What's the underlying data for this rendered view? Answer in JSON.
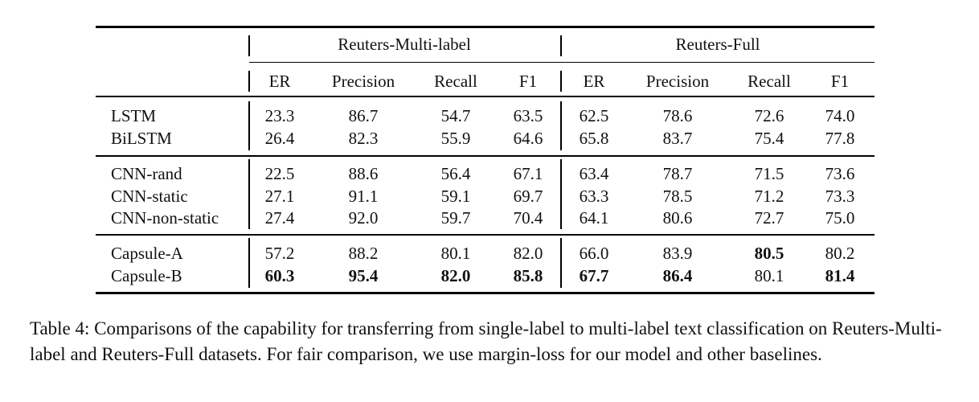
{
  "table": {
    "groups": [
      "Reuters-Multi-label",
      "Reuters-Full"
    ],
    "columns": [
      "ER",
      "Precision",
      "Recall",
      "F1",
      "ER",
      "Precision",
      "Recall",
      "F1"
    ],
    "sections": [
      [
        {
          "model": "LSTM",
          "values": [
            "23.3",
            "86.7",
            "54.7",
            "63.5",
            "62.5",
            "78.6",
            "72.6",
            "74.0"
          ],
          "bold": []
        },
        {
          "model": "BiLSTM",
          "values": [
            "26.4",
            "82.3",
            "55.9",
            "64.6",
            "65.8",
            "83.7",
            "75.4",
            "77.8"
          ],
          "bold": []
        }
      ],
      [
        {
          "model": "CNN-rand",
          "values": [
            "22.5",
            "88.6",
            "56.4",
            "67.1",
            "63.4",
            "78.7",
            "71.5",
            "73.6"
          ],
          "bold": []
        },
        {
          "model": "CNN-static",
          "values": [
            "27.1",
            "91.1",
            "59.1",
            "69.7",
            "63.3",
            "78.5",
            "71.2",
            "73.3"
          ],
          "bold": []
        },
        {
          "model": "CNN-non-static",
          "values": [
            "27.4",
            "92.0",
            "59.7",
            "70.4",
            "64.1",
            "80.6",
            "72.7",
            "75.0"
          ],
          "bold": []
        }
      ],
      [
        {
          "model": "Capsule-A",
          "values": [
            "57.2",
            "88.2",
            "80.1",
            "82.0",
            "66.0",
            "83.9",
            "80.5",
            "80.2"
          ],
          "bold": [
            6
          ]
        },
        {
          "model": "Capsule-B",
          "values": [
            "60.3",
            "95.4",
            "82.0",
            "85.8",
            "67.7",
            "86.4",
            "80.1",
            "81.4"
          ],
          "bold": [
            0,
            1,
            2,
            3,
            4,
            5,
            7
          ]
        }
      ]
    ]
  },
  "caption": "Table 4: Comparisons of the capability for transferring from single-label to multi-label text classification on Reuters-Multi-label and Reuters-Full datasets. For fair comparison, we use margin-loss for our model and other baselines."
}
